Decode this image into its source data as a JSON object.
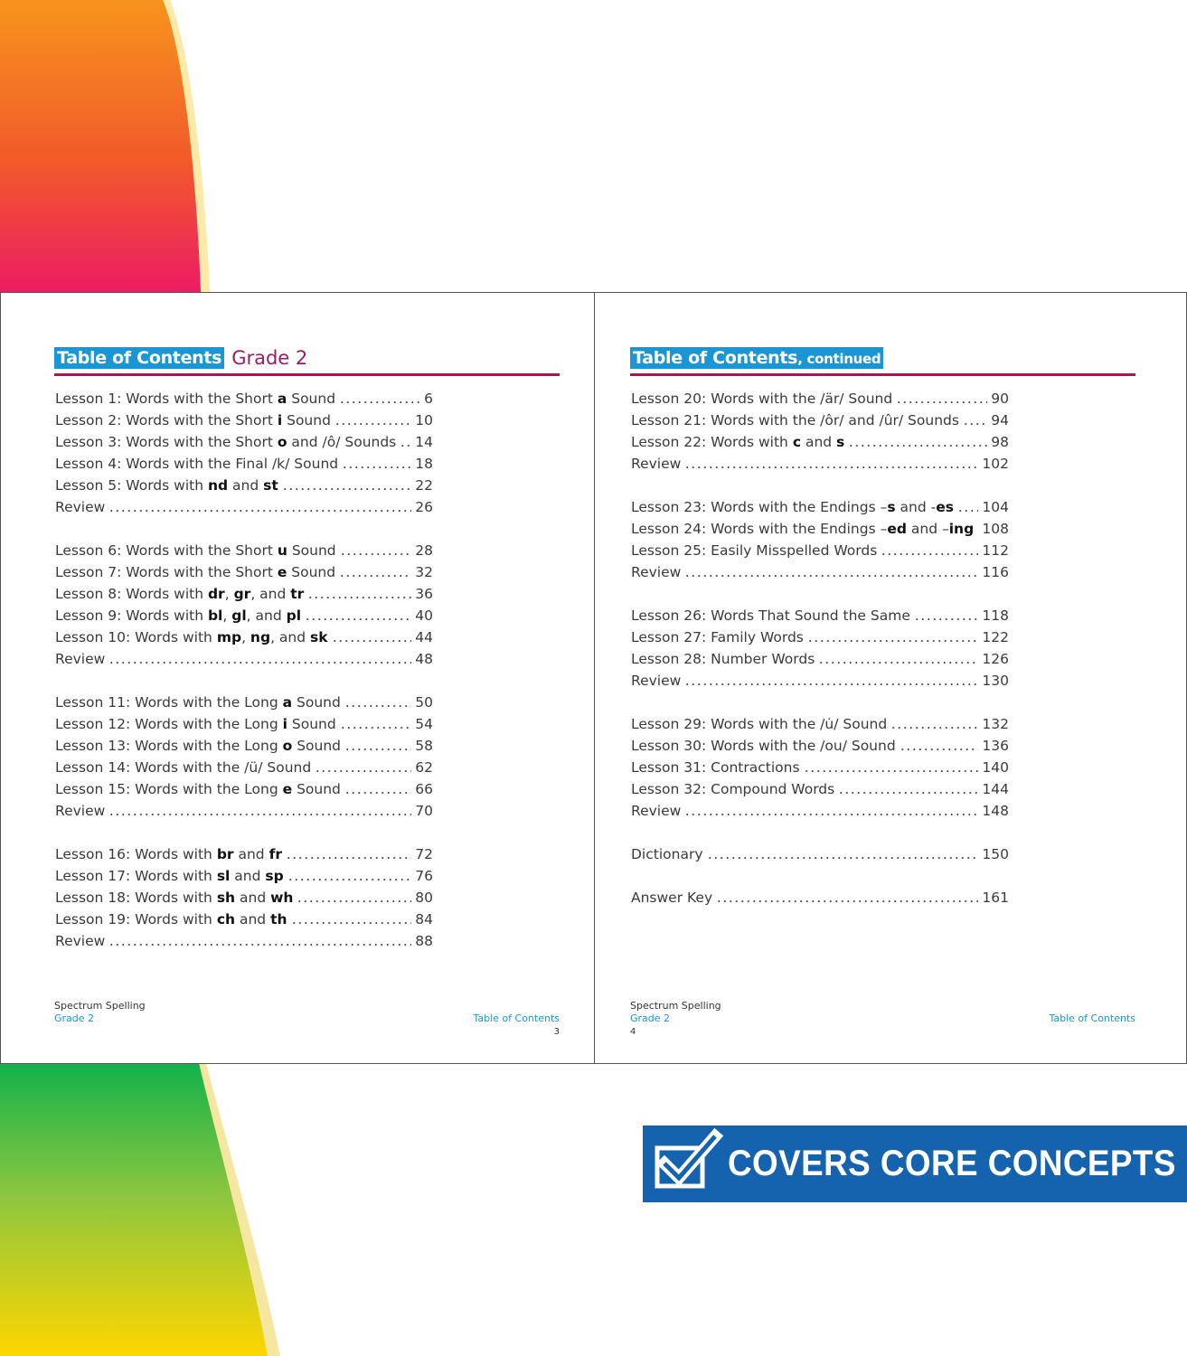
{
  "left_page": {
    "heading": {
      "title": "Table of Contents",
      "grade": "Grade 2"
    },
    "groups": [
      [
        {
          "parts": [
            "Lesson 1: Words with the Short ",
            "a",
            " Sound"
          ],
          "page": 6
        },
        {
          "parts": [
            "Lesson 2: Words with the Short ",
            "i",
            " Sound"
          ],
          "page": 10
        },
        {
          "parts": [
            "Lesson 3: Words with the Short ",
            "o",
            " and /ô/ Sounds"
          ],
          "page": 14
        },
        {
          "parts": [
            "Lesson 4: Words with the Final /k/ Sound"
          ],
          "page": 18
        },
        {
          "parts": [
            "Lesson 5: Words with ",
            "nd",
            " and ",
            "st"
          ],
          "page": 22
        },
        {
          "parts": [
            "Review"
          ],
          "page": 26
        }
      ],
      [
        {
          "parts": [
            "Lesson 6: Words with the Short ",
            "u",
            " Sound"
          ],
          "page": 28
        },
        {
          "parts": [
            "Lesson 7: Words with the Short ",
            "e",
            " Sound"
          ],
          "page": 32
        },
        {
          "parts": [
            "Lesson 8: Words with ",
            "dr",
            ", ",
            "gr",
            ", and ",
            "tr"
          ],
          "page": 36
        },
        {
          "parts": [
            "Lesson 9: Words with ",
            "bl",
            ", ",
            "gl",
            ", and ",
            "pl"
          ],
          "page": 40
        },
        {
          "parts": [
            "Lesson 10: Words with ",
            "mp",
            ", ",
            "ng",
            ", and ",
            "sk"
          ],
          "page": 44
        },
        {
          "parts": [
            "Review"
          ],
          "page": 48
        }
      ],
      [
        {
          "parts": [
            "Lesson 11: Words with the Long ",
            "a",
            " Sound"
          ],
          "page": 50
        },
        {
          "parts": [
            "Lesson 12: Words with the Long ",
            "i",
            " Sound"
          ],
          "page": 54
        },
        {
          "parts": [
            "Lesson 13: Words with the Long ",
            "o",
            " Sound"
          ],
          "page": 58
        },
        {
          "parts": [
            "Lesson 14: Words with the /ü/ Sound"
          ],
          "page": 62
        },
        {
          "parts": [
            "Lesson 15: Words with the Long ",
            "e",
            " Sound"
          ],
          "page": 66
        },
        {
          "parts": [
            "Review"
          ],
          "page": 70
        }
      ],
      [
        {
          "parts": [
            "Lesson 16: Words with ",
            "br",
            " and ",
            "fr"
          ],
          "page": 72
        },
        {
          "parts": [
            "Lesson 17: Words with ",
            "sl",
            " and ",
            "sp"
          ],
          "page": 76
        },
        {
          "parts": [
            "Lesson 18: Words with ",
            "sh",
            " and ",
            "wh"
          ],
          "page": 80
        },
        {
          "parts": [
            "Lesson 19: Words with ",
            "ch",
            " and ",
            "th"
          ],
          "page": 84
        },
        {
          "parts": [
            "Review"
          ],
          "page": 88
        }
      ]
    ],
    "footer": {
      "series": "Spectrum Spelling",
      "grade": "Grade 2",
      "section": "Table of Contents",
      "page_number": 3
    }
  },
  "right_page": {
    "heading": {
      "title": "Table of Contents",
      "suffix": ", continued"
    },
    "groups": [
      [
        {
          "parts": [
            "Lesson 20: Words with the /är/ Sound"
          ],
          "page": 90
        },
        {
          "parts": [
            "Lesson 21: Words with the /ôr/ and /ûr/ Sounds"
          ],
          "page": 94
        },
        {
          "parts": [
            "Lesson 22: Words with ",
            "c",
            " and ",
            "s"
          ],
          "page": 98
        },
        {
          "parts": [
            "Review"
          ],
          "page": 102
        }
      ],
      [
        {
          "parts": [
            "Lesson 23: Words with the Endings –",
            "s",
            " and -",
            "es"
          ],
          "page": 104
        },
        {
          "parts": [
            "Lesson 24: Words with the Endings –",
            "ed",
            " and –",
            "ing"
          ],
          "page": 108
        },
        {
          "parts": [
            "Lesson 25: Easily Misspelled Words"
          ],
          "page": 112
        },
        {
          "parts": [
            "Review"
          ],
          "page": 116
        }
      ],
      [
        {
          "parts": [
            "Lesson 26: Words That Sound the Same"
          ],
          "page": 118
        },
        {
          "parts": [
            "Lesson 27: Family Words"
          ],
          "page": 122
        },
        {
          "parts": [
            "Lesson 28: Number Words"
          ],
          "page": 126
        },
        {
          "parts": [
            "Review"
          ],
          "page": 130
        }
      ],
      [
        {
          "parts": [
            "Lesson 29: Words with the /u̇/ Sound"
          ],
          "page": 132
        },
        {
          "parts": [
            "Lesson 30: Words with the /ou/ Sound"
          ],
          "page": 136
        },
        {
          "parts": [
            "Lesson 31: Contractions"
          ],
          "page": 140
        },
        {
          "parts": [
            "Lesson 32: Compound Words"
          ],
          "page": 144
        },
        {
          "parts": [
            "Review"
          ],
          "page": 148
        }
      ],
      [
        {
          "parts": [
            "Dictionary"
          ],
          "page": 150
        }
      ],
      [
        {
          "parts": [
            "Answer Key"
          ],
          "page": 161
        }
      ]
    ],
    "footer": {
      "series": "Spectrum Spelling",
      "grade": "Grade 2",
      "section": "Table of Contents",
      "page_number": 4
    }
  },
  "badge": {
    "text": "COVERS CORE CONCEPTS"
  }
}
